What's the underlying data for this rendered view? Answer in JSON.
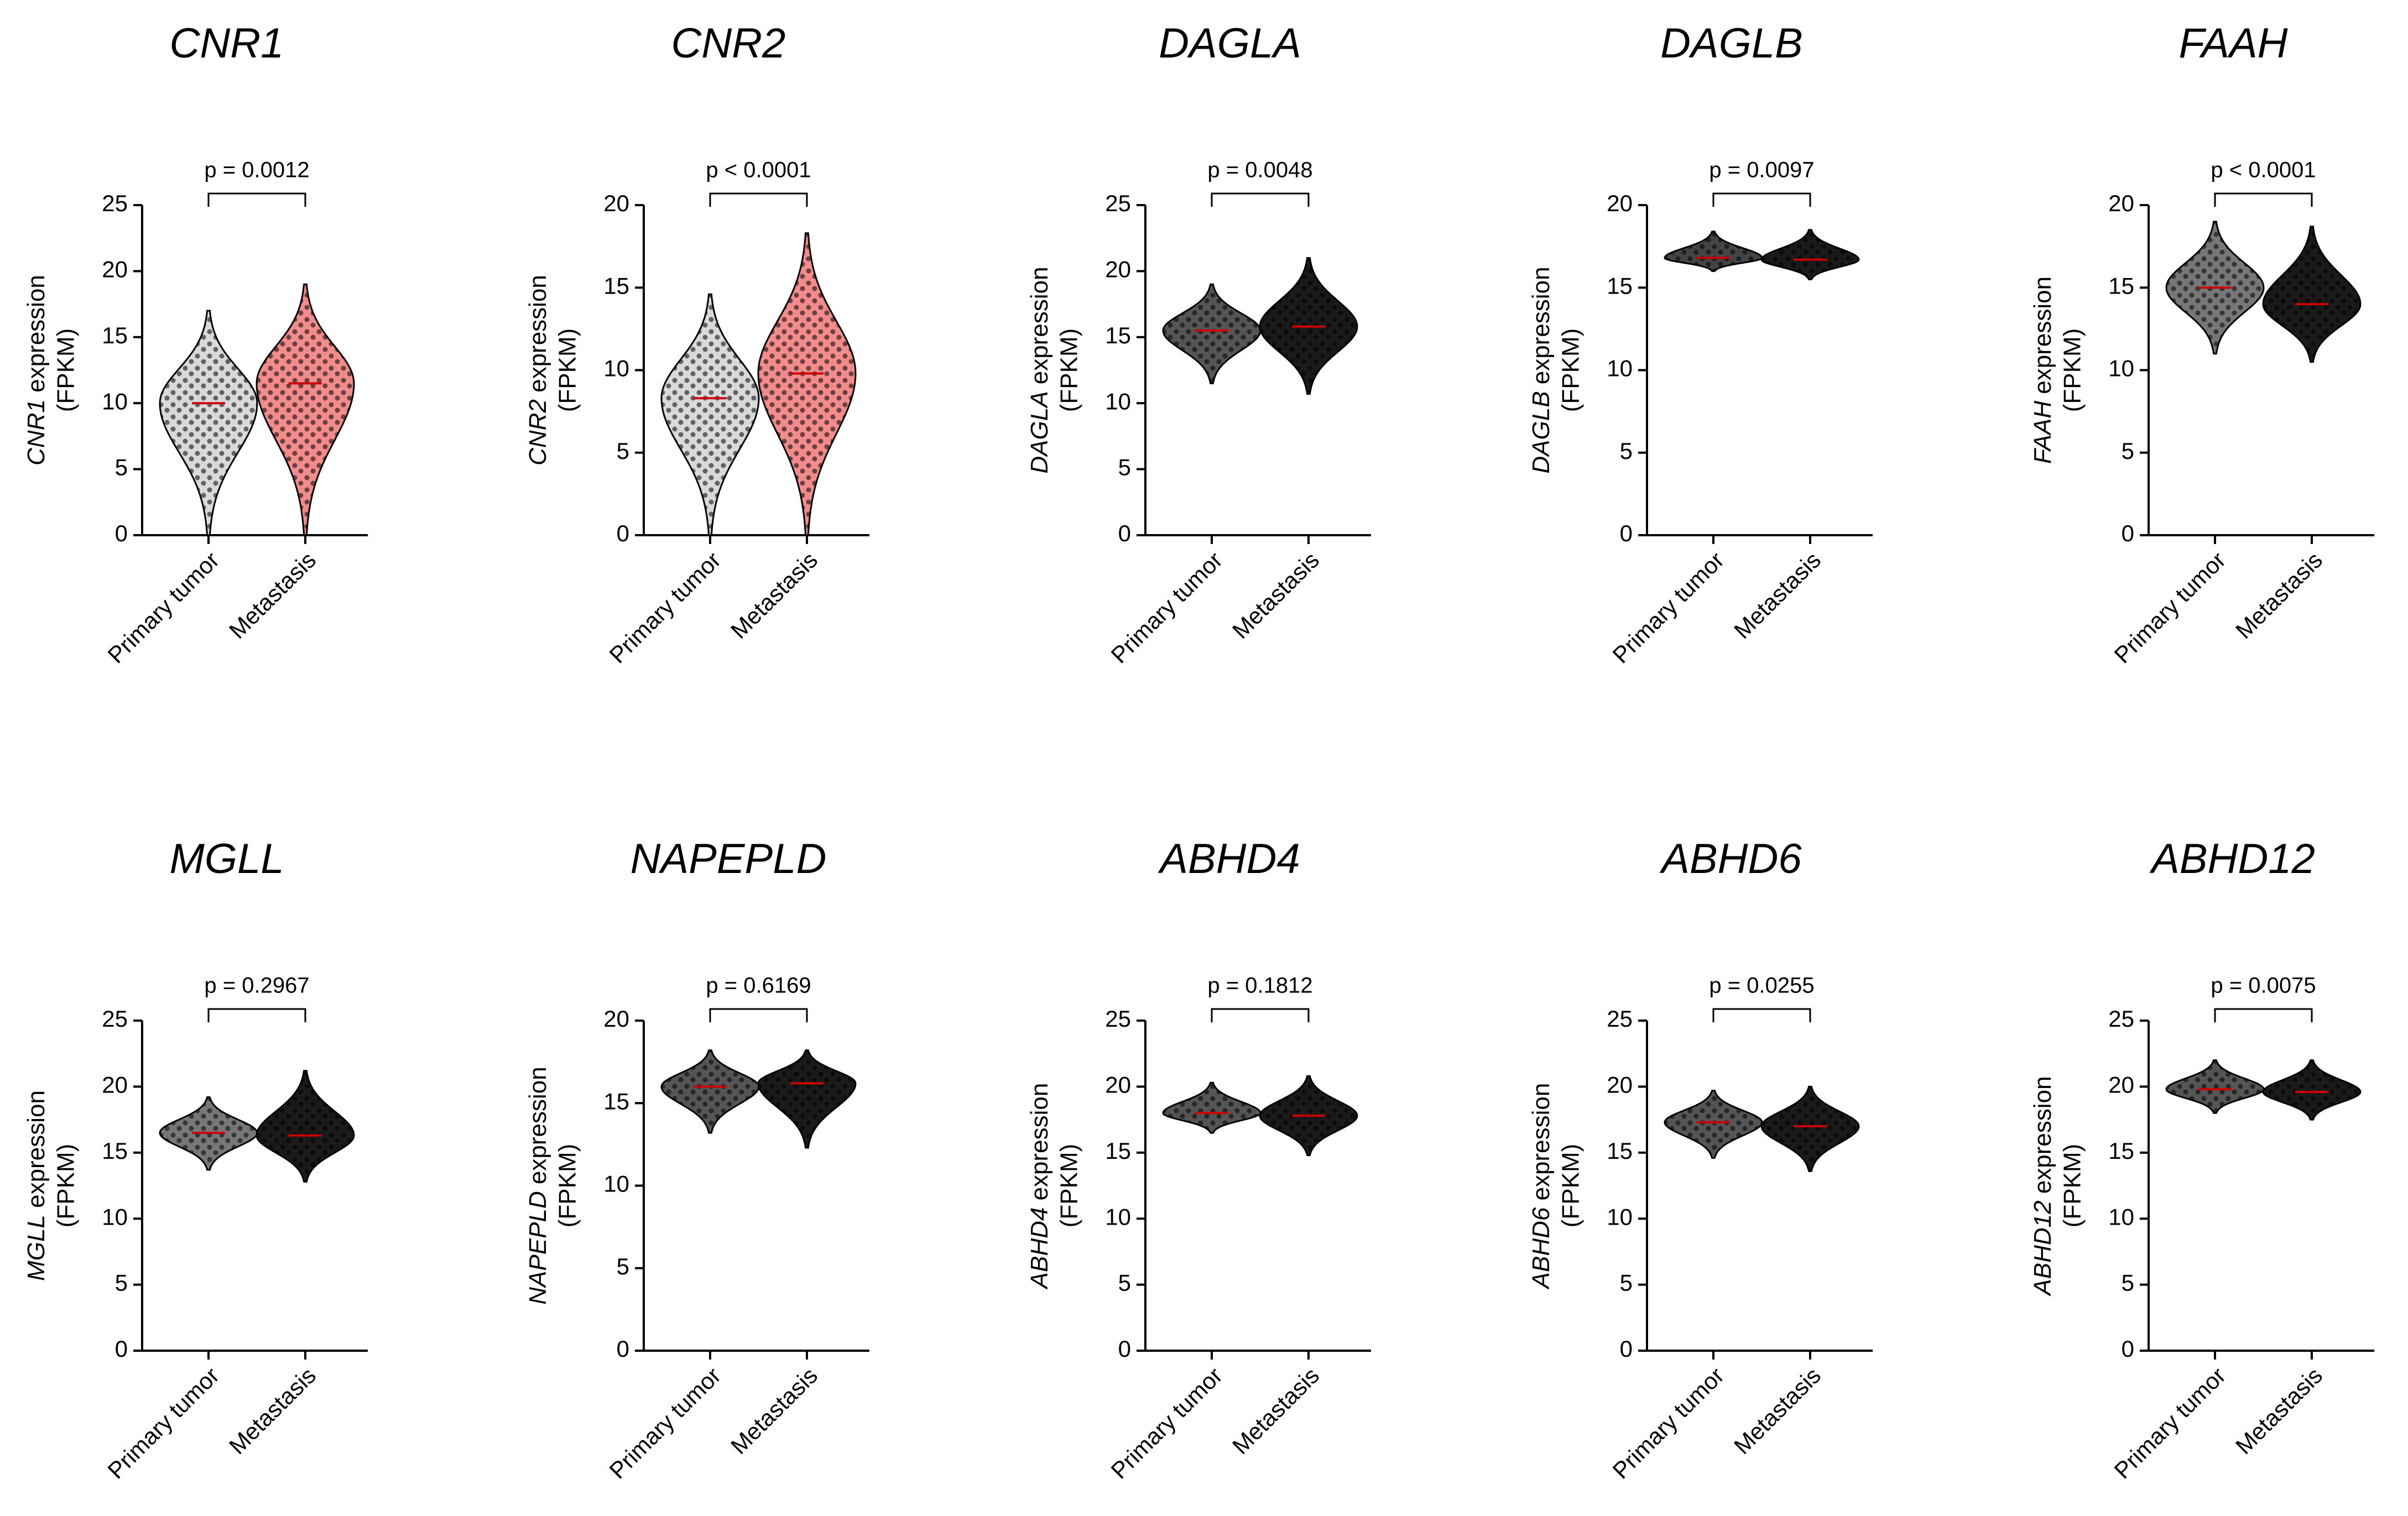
{
  "chart_data": [
    {
      "type": "violin",
      "title": "CNR1",
      "ylabel": [
        "CNR1",
        " expression"
      ],
      "ylabel2": "(FPKM)",
      "annotation": "p = 0.0012",
      "categories": [
        "Primary tumor",
        "Metastasis"
      ],
      "min": [
        0,
        0
      ],
      "median": [
        10,
        11.5
      ],
      "max": [
        17,
        19
      ],
      "colors": [
        "#d9d9d9",
        "#f28b8b"
      ],
      "ylim": [
        0,
        25
      ],
      "yticks": [
        0,
        5,
        10,
        15,
        20,
        25
      ]
    },
    {
      "type": "violin",
      "title": "CNR2",
      "ylabel": [
        "CNR2",
        " expression"
      ],
      "ylabel2": "(FPKM)",
      "annotation": "p < 0.0001",
      "categories": [
        "Primary tumor",
        "Metastasis"
      ],
      "min": [
        0,
        0
      ],
      "median": [
        8.3,
        9.8
      ],
      "max": [
        14.6,
        18.3
      ],
      "colors": [
        "#d9d9d9",
        "#f28b8b"
      ],
      "ylim": [
        0,
        20
      ],
      "yticks": [
        0,
        5,
        10,
        15,
        20
      ]
    },
    {
      "type": "violin",
      "title": "DAGLA",
      "ylabel": [
        "DAGLA",
        " expression"
      ],
      "ylabel2": "(FPKM)",
      "annotation": "p = 0.0048",
      "categories": [
        "Primary tumor",
        "Metastasis"
      ],
      "min": [
        11.5,
        10.7
      ],
      "median": [
        15.5,
        15.8
      ],
      "max": [
        19,
        21
      ],
      "colors": [
        "#555555",
        "#1a1a1a"
      ],
      "ylim": [
        0,
        25
      ],
      "yticks": [
        0,
        5,
        10,
        15,
        20,
        25
      ]
    },
    {
      "type": "violin",
      "title": "DAGLB",
      "ylabel": [
        "DAGLB",
        " expression"
      ],
      "ylabel2": "(FPKM)",
      "annotation": "p = 0.0097",
      "categories": [
        "Primary tumor",
        "Metastasis"
      ],
      "min": [
        16,
        15.5
      ],
      "median": [
        16.8,
        16.7
      ],
      "max": [
        18.4,
        18.5
      ],
      "colors": [
        "#444444",
        "#1a1a1a"
      ],
      "ylim": [
        0,
        20
      ],
      "yticks": [
        0,
        5,
        10,
        15,
        20
      ]
    },
    {
      "type": "violin",
      "title": "FAAH",
      "ylabel": [
        "FAAH",
        " expression"
      ],
      "ylabel2": "(FPKM)",
      "annotation": "p < 0.0001",
      "categories": [
        "Primary tumor",
        "Metastasis"
      ],
      "min": [
        11,
        10.5
      ],
      "median": [
        15,
        14
      ],
      "max": [
        19,
        18.7
      ],
      "colors": [
        "#777777",
        "#1a1a1a"
      ],
      "ylim": [
        0,
        20
      ],
      "yticks": [
        0,
        5,
        10,
        15,
        20
      ]
    },
    {
      "type": "violin",
      "title": "MGLL",
      "ylabel": [
        "MGLL",
        " expression"
      ],
      "ylabel2": "(FPKM)",
      "annotation": "p = 0.2967",
      "categories": [
        "Primary tumor",
        "Metastasis"
      ],
      "min": [
        13.7,
        12.8
      ],
      "median": [
        16.5,
        16.3
      ],
      "max": [
        19.2,
        21.2
      ],
      "colors": [
        "#777777",
        "#1a1a1a"
      ],
      "ylim": [
        0,
        25
      ],
      "yticks": [
        0,
        5,
        10,
        15,
        20,
        25
      ]
    },
    {
      "type": "violin",
      "title": "NAPEPLD",
      "ylabel": [
        "NAPEPLD",
        " expression"
      ],
      "ylabel2": "(FPKM)",
      "annotation": "p = 0.6169",
      "categories": [
        "Primary tumor",
        "Metastasis"
      ],
      "min": [
        13.2,
        12.3
      ],
      "median": [
        16,
        16.2
      ],
      "max": [
        18.2,
        18.2
      ],
      "colors": [
        "#555555",
        "#1a1a1a"
      ],
      "ylim": [
        0,
        20
      ],
      "yticks": [
        0,
        5,
        10,
        15,
        20
      ]
    },
    {
      "type": "violin",
      "title": "ABHD4",
      "ylabel": [
        "ABHD4",
        " expression"
      ],
      "ylabel2": "(FPKM)",
      "annotation": "p = 0.1812",
      "categories": [
        "Primary tumor",
        "Metastasis"
      ],
      "min": [
        16.5,
        14.8
      ],
      "median": [
        18,
        17.8
      ],
      "max": [
        20.3,
        20.8
      ],
      "colors": [
        "#555555",
        "#1a1a1a"
      ],
      "ylim": [
        0,
        25
      ],
      "yticks": [
        0,
        5,
        10,
        15,
        20,
        25
      ]
    },
    {
      "type": "violin",
      "title": "ABHD6",
      "ylabel": [
        "ABHD6",
        " expression"
      ],
      "ylabel2": "(FPKM)",
      "annotation": "p = 0.0255",
      "categories": [
        "Primary tumor",
        "Metastasis"
      ],
      "min": [
        14.6,
        13.6
      ],
      "median": [
        17.3,
        17
      ],
      "max": [
        19.7,
        20
      ],
      "colors": [
        "#555555",
        "#1a1a1a"
      ],
      "ylim": [
        0,
        25
      ],
      "yticks": [
        0,
        5,
        10,
        15,
        20,
        25
      ]
    },
    {
      "type": "violin",
      "title": "ABHD12",
      "ylabel": [
        "ABHD12",
        " expression"
      ],
      "ylabel2": "(FPKM)",
      "annotation": "p = 0.0075",
      "categories": [
        "Primary tumor",
        "Metastasis"
      ],
      "min": [
        18,
        17.5
      ],
      "median": [
        19.8,
        19.6
      ],
      "max": [
        22,
        22
      ],
      "colors": [
        "#555555",
        "#1a1a1a"
      ],
      "ylim": [
        0,
        25
      ],
      "yticks": [
        0,
        5,
        10,
        15,
        20,
        25
      ]
    }
  ]
}
